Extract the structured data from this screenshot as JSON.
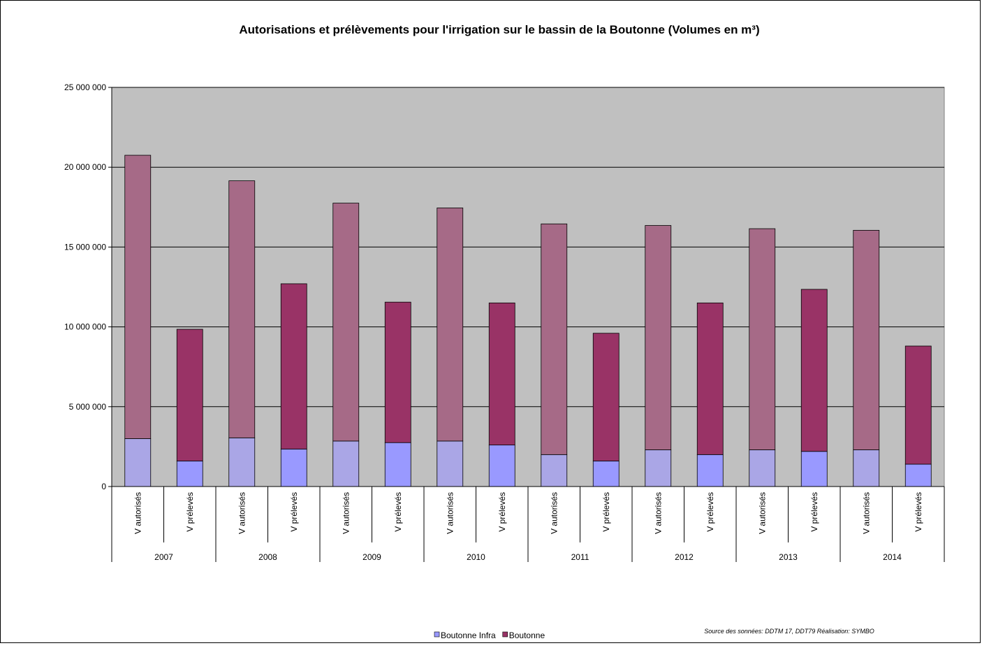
{
  "chart_data": {
    "type": "stacked_bar",
    "title": "Autorisations et prélèvements pour l'irrigation  sur le bassin de la Boutonne (Volumes en m³)",
    "categories": [
      "V autorisés",
      "V prélevés",
      "V autorisés",
      "V prélevés",
      "V autorisés",
      "V prélevés",
      "V autorisés",
      "V prélevés",
      "V autorisés",
      "V prélevés",
      "V autorisés",
      "V prélevés",
      "V autorisés",
      "V prélevés",
      "V autorisés",
      "V prélevés"
    ],
    "groups": [
      "2007",
      "2008",
      "2009",
      "2010",
      "2011",
      "2012",
      "2013",
      "2014"
    ],
    "series": [
      {
        "name": "Boutonne Infra",
        "color": "#9999ff",
        "colors": [
          "#aaa6e6",
          "#9999ff",
          "#aaa6e6",
          "#9999ff",
          "#aaa6e6",
          "#9999ff",
          "#aaa6e6",
          "#9999ff",
          "#aaa6e6",
          "#9999ff",
          "#aaa6e6",
          "#9999ff",
          "#aaa6e6",
          "#9999ff",
          "#aaa6e6",
          "#9999ff"
        ],
        "values": [
          3000000,
          1600000,
          3050000,
          2350000,
          2850000,
          2750000,
          2850000,
          2600000,
          2000000,
          1600000,
          2300000,
          2000000,
          2300000,
          2200000,
          2300000,
          1400000
        ]
      },
      {
        "name": "Boutonne",
        "color": "#993366",
        "colors": [
          "#a66a87",
          "#993366",
          "#a66a87",
          "#993366",
          "#a66a87",
          "#993366",
          "#a66a87",
          "#993366",
          "#a66a87",
          "#993366",
          "#a66a87",
          "#993366",
          "#a66a87",
          "#993366",
          "#a66a87",
          "#993366"
        ],
        "values": [
          17750000,
          8250000,
          16100000,
          10350000,
          14900000,
          8800000,
          14600000,
          8900000,
          14450000,
          8000000,
          14050000,
          9500000,
          13850000,
          10150000,
          13750000,
          7400000
        ]
      }
    ],
    "ylim": [
      0,
      25000000
    ],
    "yticks": [
      0,
      {
        "value": 5000000,
        "label": "5 000 000"
      },
      {
        "value": 10000000,
        "label": "10 000 000"
      },
      {
        "value": 15000000,
        "label": "15 000 000"
      },
      {
        "value": 20000000,
        "label": "20 000 000"
      },
      {
        "value": 25000000,
        "label": "25 000 000"
      }
    ],
    "grid": true,
    "legend": "bottom",
    "source": "Source des sonnées: DDTM 17, DDT79 Réalisation: SYMBO"
  }
}
